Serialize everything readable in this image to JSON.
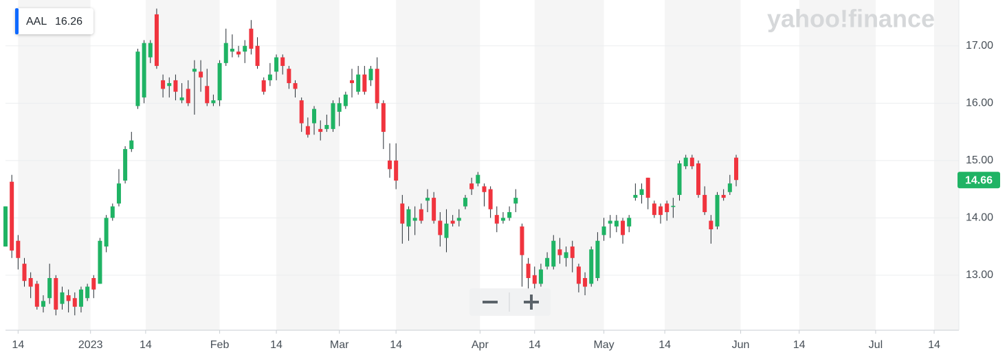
{
  "chart_data": {
    "type": "candlestick",
    "ticker": "AAL",
    "ticker_value": 16.26,
    "watermark": "yahoo!finance",
    "up_color": "#1fb364",
    "down_color": "#f0343e",
    "grid": true,
    "x": [
      "2022-12-12",
      "2022-12-13",
      "2022-12-14",
      "2022-12-15",
      "2022-12-16",
      "2022-12-19",
      "2022-12-20",
      "2022-12-21",
      "2022-12-22",
      "2022-12-23",
      "2022-12-27",
      "2022-12-28",
      "2022-12-29",
      "2022-12-30",
      "2023-01-03",
      "2023-01-04",
      "2023-01-05",
      "2023-01-06",
      "2023-01-09",
      "2023-01-10",
      "2023-01-11",
      "2023-01-12",
      "2023-01-13",
      "2023-01-17",
      "2023-01-18",
      "2023-01-19",
      "2023-01-20",
      "2023-01-23",
      "2023-01-24",
      "2023-01-25",
      "2023-01-26",
      "2023-01-27",
      "2023-01-30",
      "2023-01-31",
      "2023-02-01",
      "2023-02-02",
      "2023-02-03",
      "2023-02-06",
      "2023-02-07",
      "2023-02-08",
      "2023-02-09",
      "2023-02-10",
      "2023-02-13",
      "2023-02-14",
      "2023-02-15",
      "2023-02-16",
      "2023-02-17",
      "2023-02-21",
      "2023-02-22",
      "2023-02-23",
      "2023-02-24",
      "2023-02-27",
      "2023-02-28",
      "2023-03-01",
      "2023-03-02",
      "2023-03-03",
      "2023-03-06",
      "2023-03-07",
      "2023-03-08",
      "2023-03-09",
      "2023-03-10",
      "2023-03-13",
      "2023-03-14",
      "2023-03-15",
      "2023-03-16",
      "2023-03-17",
      "2023-03-20",
      "2023-03-21",
      "2023-03-22",
      "2023-03-23",
      "2023-03-24",
      "2023-03-27",
      "2023-03-28",
      "2023-03-29",
      "2023-03-30",
      "2023-03-31",
      "2023-04-03",
      "2023-04-04",
      "2023-04-05",
      "2023-04-06",
      "2023-04-10",
      "2023-04-11",
      "2023-04-12",
      "2023-04-13",
      "2023-04-14",
      "2023-04-17",
      "2023-04-18",
      "2023-04-19",
      "2023-04-20",
      "2023-04-21",
      "2023-04-24",
      "2023-04-25",
      "2023-04-26",
      "2023-04-27",
      "2023-04-28",
      "2023-05-01",
      "2023-05-02",
      "2023-05-03",
      "2023-05-04",
      "2023-05-05",
      "2023-05-08",
      "2023-05-09",
      "2023-05-10",
      "2023-05-11",
      "2023-05-12",
      "2023-05-15",
      "2023-05-16",
      "2023-05-17",
      "2023-05-18",
      "2023-05-19",
      "2023-05-22",
      "2023-05-23",
      "2023-05-24",
      "2023-05-25",
      "2023-05-26",
      "2023-05-30",
      "2023-05-31"
    ],
    "open": [
      13.5,
      14.63,
      13.6,
      13.2,
      12.95,
      12.85,
      12.45,
      12.6,
      12.95,
      12.5,
      12.65,
      12.6,
      12.45,
      12.6,
      12.95,
      12.85,
      13.5,
      14.0,
      14.25,
      14.65,
      15.2,
      15.95,
      16.1,
      16.8,
      17.55,
      16.4,
      16.3,
      16.4,
      16.05,
      16.25,
      16.55,
      16.55,
      16.3,
      16.0,
      16.05,
      16.7,
      16.9,
      16.9,
      16.9,
      17.3,
      17.0,
      16.4,
      16.4,
      16.55,
      16.8,
      16.6,
      16.35,
      16.05,
      15.6,
      15.65,
      15.55,
      15.55,
      15.55,
      15.85,
      15.95,
      16.4,
      16.2,
      16.5,
      16.4,
      16.6,
      16.0,
      15.0,
      15.0,
      14.25,
      13.85,
      13.95,
      14.15,
      14.3,
      14.35,
      13.95,
      13.65,
      13.95,
      13.95,
      14.2,
      14.6,
      14.6,
      14.55,
      14.5,
      14.05,
      13.95,
      14.0,
      14.25,
      13.85,
      13.2,
      13.0,
      12.85,
      13.15,
      13.15,
      13.45,
      13.3,
      13.5,
      13.15,
      12.95,
      12.85,
      12.95,
      13.7,
      13.9,
      13.85,
      13.95,
      13.85,
      14.35,
      14.4,
      14.7,
      14.25,
      14.2,
      14.25,
      14.19,
      14.4,
      14.9,
      15.05,
      14.95,
      14.4,
      13.95,
      13.85,
      14.4,
      14.45,
      15.05
    ],
    "high": [
      14.2,
      14.75,
      13.7,
      13.3,
      13.05,
      12.9,
      12.65,
      13.2,
      13.0,
      12.8,
      12.75,
      12.7,
      12.8,
      12.85,
      13.0,
      13.65,
      14.05,
      14.25,
      14.85,
      15.25,
      15.5,
      16.95,
      17.1,
      17.1,
      17.65,
      16.5,
      16.45,
      16.5,
      16.35,
      16.4,
      16.75,
      16.75,
      16.6,
      16.15,
      16.75,
      17.3,
      17.2,
      17.0,
      17.1,
      17.45,
      17.15,
      16.45,
      16.7,
      16.85,
      16.85,
      16.65,
      16.4,
      16.1,
      15.75,
      15.95,
      15.7,
      15.8,
      16.05,
      16.1,
      16.2,
      16.6,
      16.65,
      16.65,
      16.65,
      16.8,
      16.05,
      15.3,
      15.3,
      14.4,
      14.2,
      14.2,
      14.25,
      14.5,
      14.45,
      14.1,
      14.15,
      14.05,
      14.15,
      14.4,
      14.7,
      14.8,
      14.6,
      14.55,
      14.2,
      14.1,
      14.2,
      14.5,
      13.9,
      13.3,
      13.15,
      13.2,
      13.4,
      13.7,
      13.65,
      13.5,
      13.6,
      13.2,
      13.05,
      13.5,
      13.75,
      14.0,
      14.05,
      14.05,
      14.0,
      14.05,
      14.6,
      14.6,
      14.7,
      14.3,
      14.25,
      14.3,
      14.35,
      15.0,
      15.1,
      15.1,
      15.0,
      14.55,
      14.05,
      14.45,
      14.5,
      14.75,
      15.1
    ],
    "low": [
      13.5,
      13.3,
      13.1,
      12.8,
      12.6,
      12.4,
      12.35,
      12.5,
      12.3,
      12.4,
      12.35,
      12.3,
      12.35,
      12.55,
      12.6,
      12.85,
      13.4,
      13.95,
      14.2,
      14.6,
      15.15,
      15.9,
      16.0,
      16.7,
      16.6,
      16.1,
      16.1,
      16.05,
      16.0,
      15.95,
      15.8,
      16.2,
      15.95,
      15.95,
      15.95,
      16.65,
      16.8,
      16.8,
      16.7,
      16.85,
      16.6,
      16.15,
      16.3,
      16.4,
      16.5,
      16.25,
      16.1,
      15.5,
      15.4,
      15.45,
      15.35,
      15.5,
      15.5,
      15.6,
      15.9,
      16.1,
      16.15,
      16.15,
      16.3,
      15.9,
      15.2,
      14.7,
      14.5,
      13.55,
      13.6,
      13.7,
      13.9,
      14.1,
      13.9,
      13.5,
      13.4,
      13.85,
      13.85,
      14.15,
      14.4,
      14.55,
      14.2,
      14.0,
      13.75,
      13.9,
      13.95,
      14.1,
      12.8,
      12.75,
      12.75,
      12.8,
      13.1,
      13.1,
      13.2,
      13.15,
      13.05,
      12.7,
      12.65,
      12.8,
      12.9,
      13.6,
      13.65,
      13.75,
      13.55,
      13.75,
      14.3,
      14.25,
      14.15,
      14.0,
      13.9,
      13.95,
      14.0,
      14.3,
      14.85,
      14.85,
      14.35,
      14.05,
      13.55,
      13.8,
      14.3,
      14.4,
      14.55
    ],
    "close": [
      14.2,
      13.43,
      13.3,
      12.9,
      12.8,
      12.45,
      12.55,
      12.95,
      12.4,
      12.7,
      12.55,
      12.45,
      12.75,
      12.8,
      12.75,
      13.6,
      14.0,
      14.2,
      14.6,
      15.2,
      15.35,
      16.9,
      17.05,
      17.05,
      16.65,
      16.25,
      16.35,
      16.2,
      16.1,
      16.0,
      16.6,
      16.45,
      16.0,
      16.05,
      16.7,
      17.05,
      16.95,
      16.85,
      17.0,
      16.95,
      16.65,
      16.2,
      16.5,
      16.8,
      16.65,
      16.35,
      16.25,
      15.65,
      15.45,
      15.9,
      15.5,
      15.62,
      16.0,
      16.0,
      16.15,
      16.35,
      16.5,
      16.2,
      16.6,
      16.0,
      15.5,
      14.85,
      14.65,
      13.9,
      14.15,
      14.0,
      13.95,
      14.35,
      13.95,
      13.7,
      13.9,
      13.9,
      14.0,
      14.35,
      14.5,
      14.75,
      14.45,
      14.15,
      13.9,
      14.0,
      14.1,
      14.35,
      13.35,
      12.95,
      12.85,
      13.1,
      13.3,
      13.6,
      13.35,
      13.4,
      13.3,
      12.85,
      12.8,
      13.45,
      13.6,
      13.85,
      13.95,
      13.95,
      13.7,
      14.0,
      14.4,
      14.5,
      14.35,
      14.05,
      14.05,
      14.1,
      14.21,
      14.95,
      15.05,
      14.9,
      14.4,
      14.1,
      13.8,
      14.4,
      14.35,
      14.6,
      14.66
    ],
    "ylim": [
      12.04,
      17.8
    ],
    "yticks": [
      {
        "value": 13,
        "label": "13.00"
      },
      {
        "value": 14,
        "label": "14.00"
      },
      {
        "value": 15,
        "label": "15.00"
      },
      {
        "value": 16,
        "label": "16.00"
      },
      {
        "value": 17,
        "label": "17.00"
      }
    ],
    "xticks": [
      {
        "value": "2022-12-14",
        "label": "14"
      },
      {
        "value": "2023-01-01",
        "label": "2023"
      },
      {
        "value": "2023-01-14",
        "label": "14"
      },
      {
        "value": "2023-02-01",
        "label": "Feb"
      },
      {
        "value": "2023-02-14",
        "label": "14"
      },
      {
        "value": "2023-03-01",
        "label": "Mar"
      },
      {
        "value": "2023-03-14",
        "label": "14"
      },
      {
        "value": "2023-04-01",
        "label": "Apr"
      },
      {
        "value": "2023-04-14",
        "label": "14"
      },
      {
        "value": "2023-05-01",
        "label": "May"
      },
      {
        "value": "2023-05-14",
        "label": "14"
      },
      {
        "value": "2023-06-01",
        "label": "Jun"
      },
      {
        "value": "2023-06-14",
        "label": "14"
      },
      {
        "value": "2023-07-01",
        "label": "Jul"
      },
      {
        "value": "2023-07-14",
        "label": "14"
      }
    ]
  }
}
